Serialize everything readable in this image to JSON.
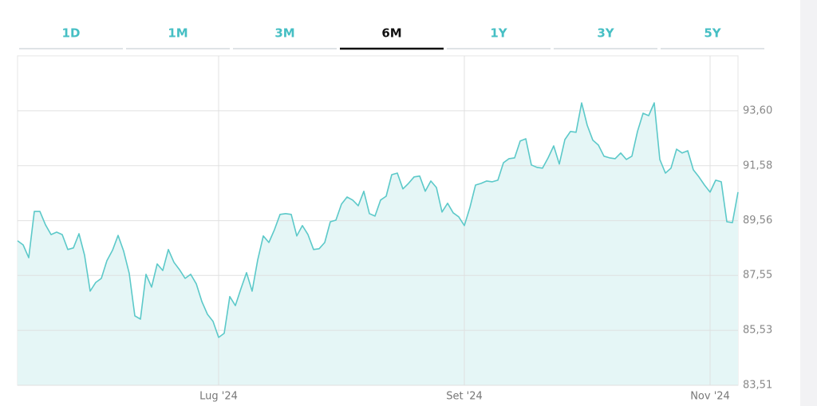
{
  "tabs": [
    "1D",
    "1M",
    "3M",
    "6M",
    "1Y",
    "3Y",
    "5Y"
  ],
  "selected": "6M",
  "chart_data": {
    "type": "line",
    "color": "#5cc9c9",
    "fill": "#e5f6f6",
    "grid": true,
    "xlim": [
      0,
      129
    ],
    "xticks": [
      {
        "value": 36,
        "label": "Lug '24"
      },
      {
        "value": 80,
        "label": "Set '24"
      },
      {
        "value": 124,
        "label": "Nov '24"
      }
    ],
    "ylim": [
      83.51,
      95.62
    ],
    "yticks": [
      {
        "value": 83.51,
        "label": "83,51"
      },
      {
        "value": 85.53,
        "label": "85,53"
      },
      {
        "value": 87.55,
        "label": "87,55"
      },
      {
        "value": 89.56,
        "label": "89,56"
      },
      {
        "value": 91.58,
        "label": "91,58"
      },
      {
        "value": 93.6,
        "label": "93,60"
      }
    ],
    "values": [
      88.82,
      88.67,
      88.2,
      89.9,
      89.9,
      89.41,
      89.05,
      89.14,
      89.05,
      88.5,
      88.56,
      89.08,
      88.29,
      86.97,
      87.29,
      87.44,
      88.09,
      88.47,
      89.02,
      88.44,
      87.62,
      86.06,
      85.94,
      87.59,
      87.12,
      87.97,
      87.73,
      88.5,
      88.03,
      87.76,
      87.44,
      87.59,
      87.24,
      86.59,
      86.12,
      85.86,
      85.27,
      85.42,
      86.77,
      86.44,
      87.06,
      87.65,
      86.97,
      88.12,
      89.0,
      88.76,
      89.23,
      89.79,
      89.82,
      89.79,
      89.0,
      89.38,
      89.05,
      88.5,
      88.53,
      88.76,
      89.52,
      89.58,
      90.17,
      90.43,
      90.32,
      90.11,
      90.64,
      89.82,
      89.73,
      90.32,
      90.46,
      91.25,
      91.31,
      90.73,
      90.93,
      91.17,
      91.2,
      90.64,
      91.02,
      90.78,
      89.88,
      90.2,
      89.85,
      89.7,
      89.38,
      90.05,
      90.87,
      90.93,
      91.02,
      90.99,
      91.05,
      91.69,
      91.84,
      91.87,
      92.49,
      92.57,
      91.61,
      91.52,
      91.49,
      91.87,
      92.31,
      91.64,
      92.54,
      92.84,
      92.81,
      93.89,
      93.07,
      92.52,
      92.34,
      91.93,
      91.87,
      91.84,
      92.05,
      91.81,
      91.93,
      92.84,
      93.51,
      93.42,
      93.89,
      91.81,
      91.31,
      91.49,
      92.19,
      92.05,
      92.13,
      91.43,
      91.17,
      90.87,
      90.61,
      91.05,
      90.99,
      89.52,
      89.49,
      90.61
    ]
  }
}
